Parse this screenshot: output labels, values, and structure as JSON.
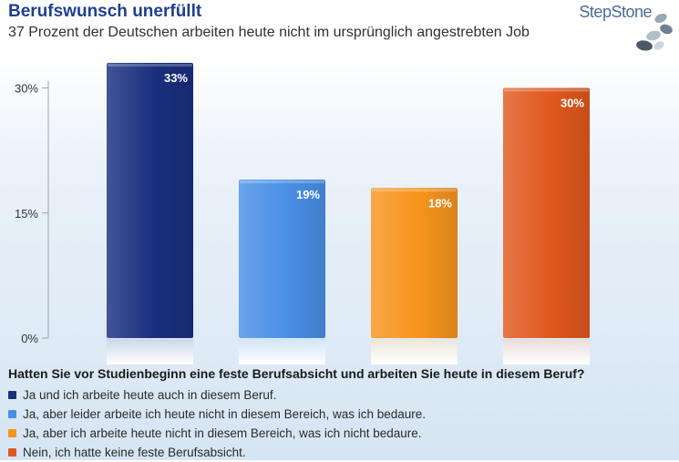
{
  "header": {
    "title": "Berufswunsch unerfüllt",
    "subtitle": "37 Prozent der Deutschen arbeiten heute nicht im ursprünglich angestrebten Job",
    "logo_text": "StepStone"
  },
  "chart_data": {
    "type": "bar",
    "categories": [
      "Ja und ich arbeite heute auch in diesem Beruf.",
      "Ja, aber leider arbeite ich heute nicht in diesem Bereich, was ich bedaure.",
      "Ja, aber ich arbeite heute nicht in diesem Bereich, was ich nicht bedaure.",
      "Nein, ich hatte keine feste Berufsabsicht."
    ],
    "values": [
      33,
      19,
      18,
      30
    ],
    "data_labels": [
      "33%",
      "19%",
      "18%",
      "30%"
    ],
    "colors": [
      "#1a2f7e",
      "#4a8fe6",
      "#f7941d",
      "#e0581e"
    ],
    "yticks": [
      0,
      15,
      30
    ],
    "ytick_labels": [
      "0%",
      "15%",
      "30%"
    ],
    "ylim": [
      0,
      33
    ],
    "grid": false,
    "legend_title": "Hatten Sie vor Studienbeginn eine feste Berufsabsicht und arbeiten Sie heute in diesem Beruf?",
    "legend_position": "bottom"
  }
}
